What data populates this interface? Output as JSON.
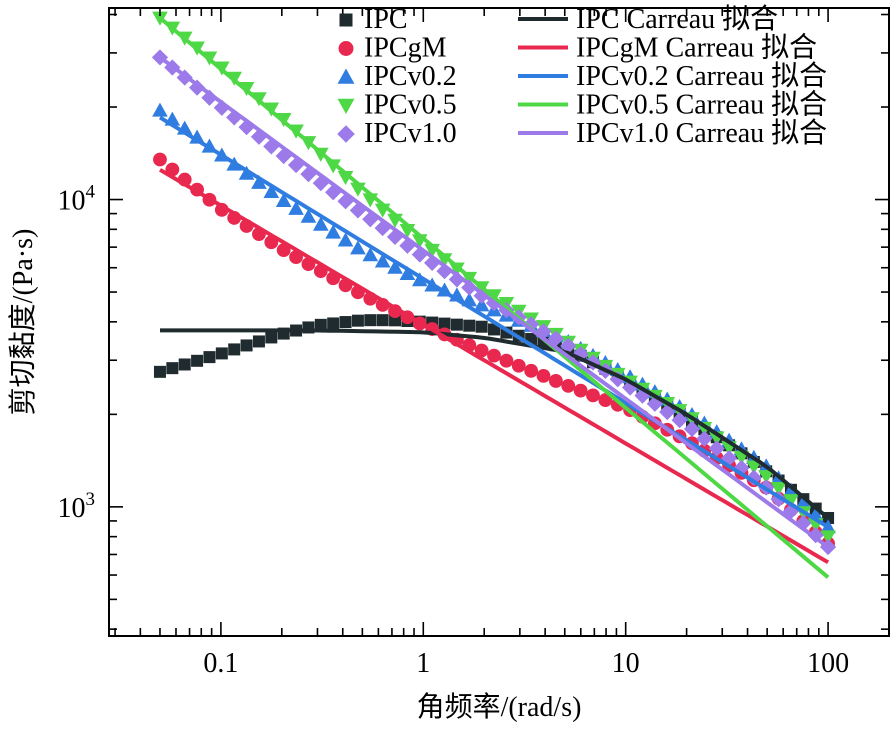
{
  "chart_data": {
    "type": "scatter",
    "xlabel": "角频率/(rad/s)",
    "ylabel": "剪切黏度/(Pa·s)",
    "x_scale": "log",
    "y_scale": "log",
    "xlim": [
      0.028,
      200
    ],
    "ylim": [
      380,
      42000
    ],
    "x_ticks": [
      0.1,
      1,
      10,
      100
    ],
    "x_tick_labels": [
      "0.1",
      "1",
      "10",
      "100"
    ],
    "y_ticks": [
      1000,
      10000
    ],
    "y_tick_labels": [
      {
        "base": "10",
        "exp": "3"
      },
      {
        "base": "10",
        "exp": "4"
      }
    ],
    "legend_position": "top-right",
    "series": [
      {
        "name": "IPC",
        "kind": "points",
        "marker": "square",
        "color": "#1f2b2f",
        "points": [
          [
            0.05,
            2750
          ],
          [
            0.1,
            3150
          ],
          [
            0.2,
            3650
          ],
          [
            0.3,
            3900
          ],
          [
            0.5,
            4050
          ],
          [
            0.7,
            4050
          ],
          [
            1,
            4000
          ],
          [
            2,
            3850
          ],
          [
            5,
            3300
          ],
          [
            10,
            2600
          ],
          [
            20,
            1950
          ],
          [
            40,
            1450
          ],
          [
            70,
            1100
          ],
          [
            100,
            920
          ]
        ]
      },
      {
        "name": "IPCgM",
        "kind": "points",
        "marker": "circle",
        "color": "#e8284e",
        "points": [
          [
            0.05,
            13500
          ],
          [
            0.08,
            10500
          ],
          [
            0.1,
            9300
          ],
          [
            0.2,
            6900
          ],
          [
            0.5,
            4900
          ],
          [
            1,
            3900
          ],
          [
            2,
            3200
          ],
          [
            5,
            2500
          ],
          [
            10,
            2100
          ],
          [
            20,
            1650
          ],
          [
            50,
            1150
          ],
          [
            100,
            760
          ]
        ]
      },
      {
        "name": "IPCv0.2",
        "kind": "points",
        "marker": "triangle-up",
        "color": "#2f7de1",
        "points": [
          [
            0.05,
            19500
          ],
          [
            0.1,
            14000
          ],
          [
            0.2,
            10000
          ],
          [
            0.5,
            6800
          ],
          [
            1,
            5400
          ],
          [
            2,
            4500
          ],
          [
            5,
            3500
          ],
          [
            10,
            2700
          ],
          [
            20,
            2050
          ],
          [
            50,
            1350
          ],
          [
            100,
            860
          ]
        ]
      },
      {
        "name": "IPCv0.5",
        "kind": "points",
        "marker": "triangle-down",
        "color": "#4ed846",
        "points": [
          [
            0.05,
            39000
          ],
          [
            0.1,
            27000
          ],
          [
            0.2,
            18500
          ],
          [
            0.5,
            10500
          ],
          [
            1,
            7200
          ],
          [
            2,
            5100
          ],
          [
            5,
            3500
          ],
          [
            10,
            2600
          ],
          [
            20,
            2000
          ],
          [
            50,
            1250
          ],
          [
            100,
            800
          ]
        ]
      },
      {
        "name": "IPCv1.0",
        "kind": "points",
        "marker": "diamond",
        "color": "#9c7aea",
        "points": [
          [
            0.05,
            29000
          ],
          [
            0.1,
            20000
          ],
          [
            0.2,
            14000
          ],
          [
            0.5,
            9000
          ],
          [
            1,
            6500
          ],
          [
            2,
            4800
          ],
          [
            5,
            3400
          ],
          [
            10,
            2500
          ],
          [
            20,
            1850
          ],
          [
            50,
            1150
          ],
          [
            100,
            740
          ]
        ]
      },
      {
        "name": "IPC Carreau 拟合",
        "kind": "line",
        "color": "#1f2b2f",
        "points": [
          [
            0.05,
            3750
          ],
          [
            0.1,
            3750
          ],
          [
            0.3,
            3750
          ],
          [
            1,
            3700
          ],
          [
            2,
            3550
          ],
          [
            5,
            3200
          ],
          [
            10,
            2600
          ],
          [
            20,
            2000
          ],
          [
            50,
            1350
          ],
          [
            100,
            920
          ]
        ]
      },
      {
        "name": "IPCgM Carreau 拟合",
        "kind": "line",
        "color": "#e8284e",
        "points": [
          [
            0.05,
            12500
          ],
          [
            100,
            660
          ]
        ]
      },
      {
        "name": "IPCv0.2 Carreau 拟合",
        "kind": "line",
        "color": "#2f7de1",
        "points": [
          [
            0.05,
            18500
          ],
          [
            100,
            860
          ]
        ]
      },
      {
        "name": "IPCv0.5 Carreau 拟合",
        "kind": "line",
        "color": "#4ed846",
        "points": [
          [
            0.05,
            39000
          ],
          [
            100,
            590
          ]
        ]
      },
      {
        "name": "IPCv1.0 Carreau 拟合",
        "kind": "line",
        "color": "#9c7aea",
        "points": [
          [
            0.05,
            29000
          ],
          [
            100,
            740
          ]
        ]
      }
    ]
  }
}
